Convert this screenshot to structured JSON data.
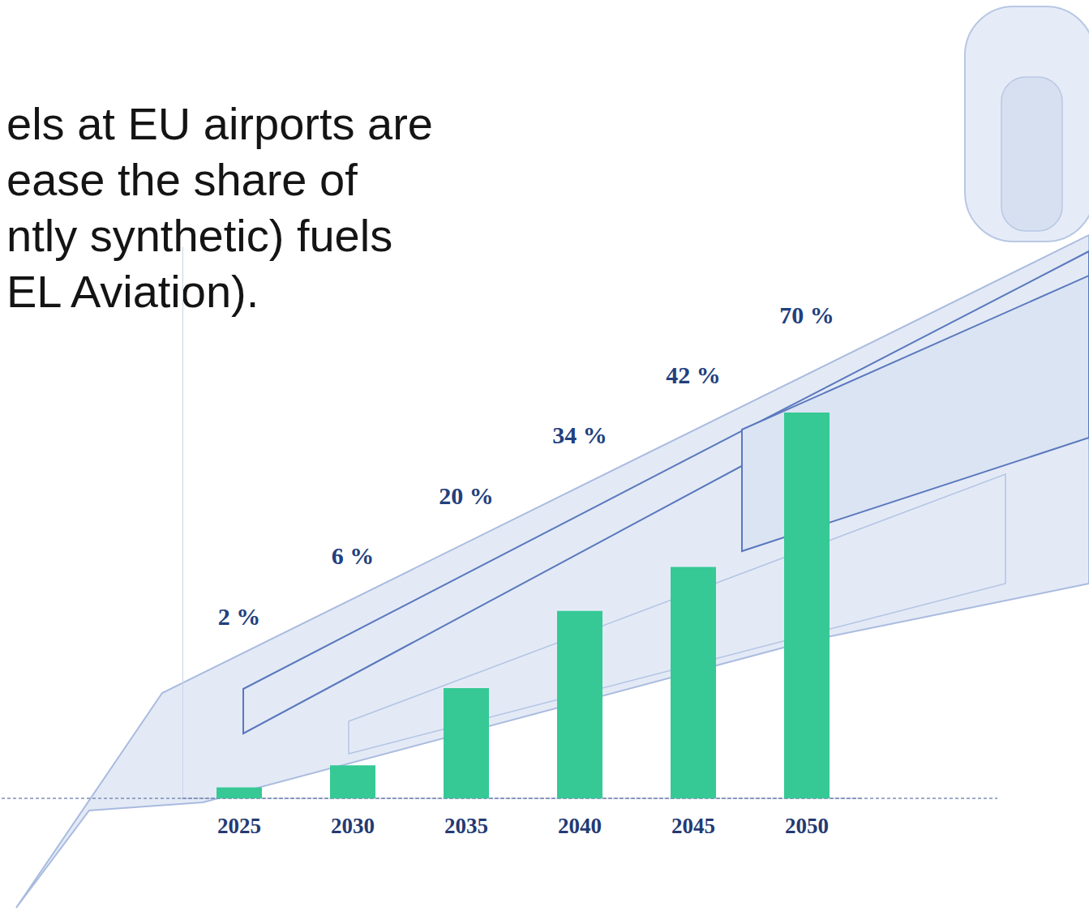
{
  "chart_data": {
    "type": "bar",
    "annotations": [
      "els at EU airports are",
      "ease the share of",
      "ntly synthetic) fuels",
      "EL Aviation)."
    ],
    "categories": [
      "2025",
      "2030",
      "2035",
      "2040",
      "2045",
      "2050"
    ],
    "values": [
      2,
      6,
      20,
      34,
      42,
      70
    ],
    "value_labels": [
      "2 %",
      "6 %",
      "20 %",
      "34 %",
      "42 %",
      "70 %"
    ],
    "color": "#36c995",
    "ylim": [
      0,
      100
    ],
    "yticks": [],
    "grid": false,
    "data_labels": true,
    "tick_labels": "x"
  }
}
